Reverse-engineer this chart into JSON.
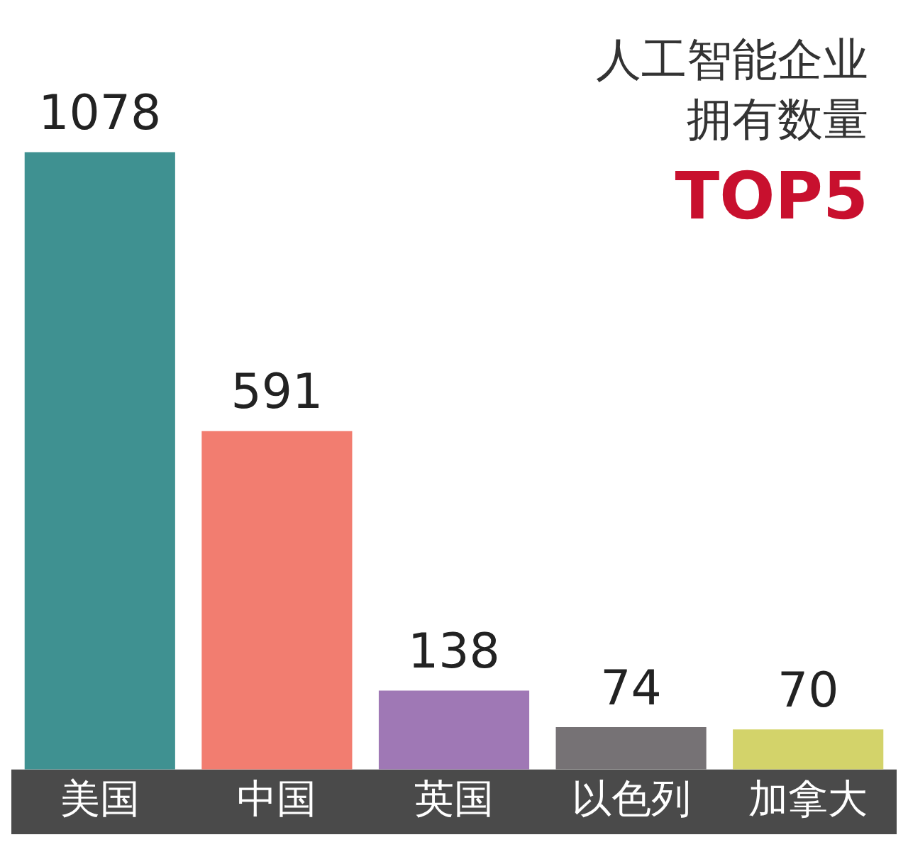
{
  "chart_data": {
    "type": "bar",
    "title": "人工智能企业拥有数量",
    "subtitle": "TOP5",
    "categories": [
      "美国",
      "中国",
      "英国",
      "以色列",
      "加拿大"
    ],
    "values": [
      1078,
      591,
      138,
      74,
      70
    ],
    "colors": [
      "#3f9191",
      "#f27d70",
      "#9f78b5",
      "#767275",
      "#d3d36a"
    ],
    "data_labels": true,
    "grid": false,
    "legend": false
  }
}
